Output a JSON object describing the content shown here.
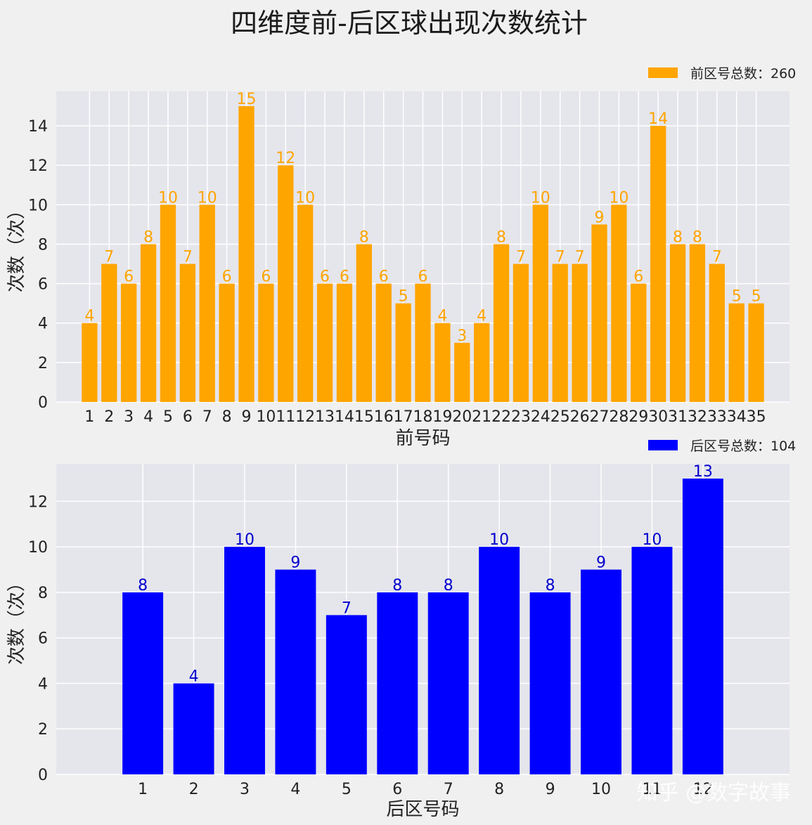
{
  "title": "四维度前-后区球出现次数统计",
  "watermark": "知乎 @数字故事",
  "chart_data": [
    {
      "type": "bar",
      "color": "#ffa500",
      "legend": "前区号总数：260",
      "legend_position": "top-right",
      "xlabel": "前号码",
      "ylabel": "次数（次）",
      "ylim": [
        0,
        15.75
      ],
      "yticks": [
        0,
        2,
        4,
        6,
        8,
        10,
        12,
        14
      ],
      "grid": true,
      "categories": [
        "1",
        "2",
        "3",
        "4",
        "5",
        "6",
        "7",
        "8",
        "9",
        "10",
        "11",
        "12",
        "13",
        "14",
        "15",
        "16",
        "17",
        "18",
        "19",
        "20",
        "21",
        "22",
        "23",
        "24",
        "25",
        "26",
        "27",
        "28",
        "29",
        "30",
        "31",
        "32",
        "33",
        "34",
        "35"
      ],
      "values": [
        4,
        7,
        6,
        8,
        10,
        7,
        10,
        6,
        15,
        6,
        12,
        10,
        6,
        6,
        8,
        6,
        5,
        6,
        4,
        3,
        4,
        8,
        7,
        10,
        7,
        7,
        9,
        10,
        6,
        14,
        8,
        8,
        7,
        5,
        5
      ]
    },
    {
      "type": "bar",
      "color": "#0000ff",
      "label_color": "#0000cd",
      "legend": "后区号总数：104",
      "legend_position": "top-right",
      "xlabel": "后区号码",
      "ylabel": "次数（次）",
      "ylim": [
        0,
        13.65
      ],
      "yticks": [
        0,
        2,
        4,
        6,
        8,
        10,
        12
      ],
      "grid": true,
      "categories": [
        "1",
        "2",
        "3",
        "4",
        "5",
        "6",
        "7",
        "8",
        "9",
        "10",
        "11",
        "12"
      ],
      "values": [
        8,
        4,
        10,
        9,
        7,
        8,
        8,
        10,
        8,
        9,
        10,
        13
      ]
    }
  ]
}
